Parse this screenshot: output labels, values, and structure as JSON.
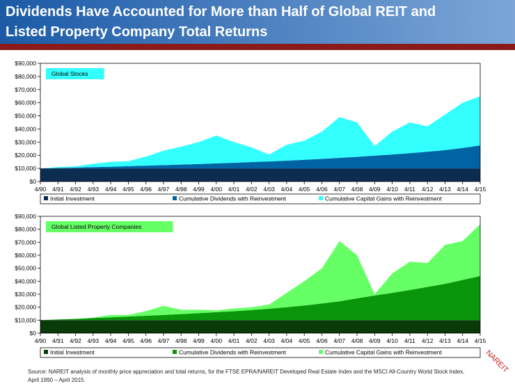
{
  "title": [
    "Dividends Have Accounted for More than Half of Global REIT and",
    "Listed Property Company Total Returns"
  ],
  "source": [
    "Source: NAREIT analysis of monthly price appreciation and total returns, for the FTSE EPRA/NAREIT Developed Real Estate Index and the MSCI All-Country World Stock Index,",
    "April 1990 – April 2015."
  ],
  "logo": "NAREIT",
  "chart_data": [
    {
      "type": "stacked-area",
      "annotation": "Global Stocks",
      "annotation_color": "#33ffff",
      "categories": [
        "4/90",
        "4/91",
        "4/92",
        "4/93",
        "4/94",
        "4/95",
        "4/96",
        "4/97",
        "4/98",
        "4/99",
        "4/00",
        "4/01",
        "4/02",
        "4/03",
        "4/04",
        "4/05",
        "4/06",
        "4/07",
        "4/08",
        "4/09",
        "4/10",
        "4/11",
        "4/12",
        "4/13",
        "4/14",
        "4/15"
      ],
      "series": [
        {
          "name": "Initial Investment",
          "color": "#0b2d4f",
          "values": [
            10000,
            10000,
            10000,
            10000,
            10000,
            10000,
            10000,
            10000,
            10000,
            10000,
            10000,
            10000,
            10000,
            10000,
            10000,
            10000,
            10000,
            10000,
            10000,
            10000,
            10000,
            10000,
            10000,
            10000,
            10000,
            10000
          ]
        },
        {
          "name": "Cumulative Dividends with Reinvestment",
          "color": "#0064a4",
          "values": [
            0,
            300,
            600,
            1000,
            1300,
            1700,
            2100,
            2500,
            2900,
            3300,
            3800,
            4300,
            4800,
            5300,
            5900,
            6500,
            7200,
            8000,
            8800,
            9700,
            10600,
            11600,
            12700,
            13900,
            15500,
            17500
          ]
        },
        {
          "name": "Cumulative Capital Gains with Reinvestment",
          "color": "#33ffff",
          "values": [
            0,
            700,
            900,
            2500,
            3700,
            3800,
            6900,
            11000,
            13600,
            16700,
            21200,
            15700,
            11200,
            5200,
            12100,
            14500,
            20800,
            31000,
            26200,
            7300,
            17400,
            23400,
            19300,
            27100,
            34500,
            37500
          ]
        }
      ],
      "ylim": [
        0,
        90000
      ],
      "yticks": [
        {
          "value": 0,
          "label": "$0"
        },
        {
          "value": 10000,
          "label": "$10,000"
        },
        {
          "value": 20000,
          "label": "$20,000"
        },
        {
          "value": 30000,
          "label": "$30,000"
        },
        {
          "value": 40000,
          "label": "$40,000"
        },
        {
          "value": 50000,
          "label": "$50,000"
        },
        {
          "value": 60000,
          "label": "$60,000"
        },
        {
          "value": 70000,
          "label": "$70,000"
        },
        {
          "value": 80000,
          "label": "$80,000"
        },
        {
          "value": 90000,
          "label": "$90,000"
        }
      ],
      "grid": false
    },
    {
      "type": "stacked-area",
      "annotation": "Global Listed Property Companies",
      "annotation_color": "#66ff66",
      "categories": [
        "4/90",
        "4/91",
        "4/92",
        "4/93",
        "4/94",
        "4/95",
        "4/96",
        "4/97",
        "4/98",
        "4/99",
        "4/00",
        "4/01",
        "4/02",
        "4/03",
        "4/04",
        "4/05",
        "4/06",
        "4/07",
        "4/08",
        "4/09",
        "4/10",
        "4/11",
        "4/12",
        "4/13",
        "4/14",
        "4/15"
      ],
      "series": [
        {
          "name": "Initial Investment",
          "color": "#0a3a0a",
          "values": [
            10000,
            10000,
            10000,
            10000,
            10000,
            10000,
            10000,
            10000,
            10000,
            10000,
            10000,
            10000,
            10000,
            10000,
            10000,
            10000,
            10000,
            10000,
            10000,
            10000,
            10000,
            10000,
            10000,
            10000,
            10000,
            10000
          ]
        },
        {
          "name": "Cumulative Dividends with Reinvestment",
          "color": "#0a960a",
          "values": [
            0,
            500,
            1000,
            1600,
            2200,
            2800,
            3400,
            4000,
            4700,
            5400,
            6100,
            6900,
            7800,
            8800,
            10000,
            11300,
            12800,
            14500,
            16800,
            19000,
            21000,
            23200,
            25600,
            28000,
            31000,
            34000
          ]
        },
        {
          "name": "Cumulative Capital Gains with Reinvestment",
          "color": "#66ff66",
          "values": [
            0,
            0,
            0,
            400,
            1800,
            1200,
            3600,
            7000,
            3300,
            2600,
            1400,
            2100,
            2200,
            3200,
            11000,
            18700,
            27200,
            46500,
            33200,
            1000,
            15000,
            21800,
            18400,
            30000,
            30000,
            40000
          ]
        }
      ],
      "ylim": [
        0,
        90000
      ],
      "yticks": [
        {
          "value": 0,
          "label": "$0"
        },
        {
          "value": 10000,
          "label": "$10,000"
        },
        {
          "value": 20000,
          "label": "$20,000"
        },
        {
          "value": 30000,
          "label": "$30,000"
        },
        {
          "value": 40000,
          "label": "$40,000"
        },
        {
          "value": 50000,
          "label": "$50,000"
        },
        {
          "value": 60000,
          "label": "$60,000"
        },
        {
          "value": 70000,
          "label": "$70,000"
        },
        {
          "value": 80000,
          "label": "$80,000"
        },
        {
          "value": 90000,
          "label": "$90,000"
        }
      ],
      "grid": false
    }
  ]
}
